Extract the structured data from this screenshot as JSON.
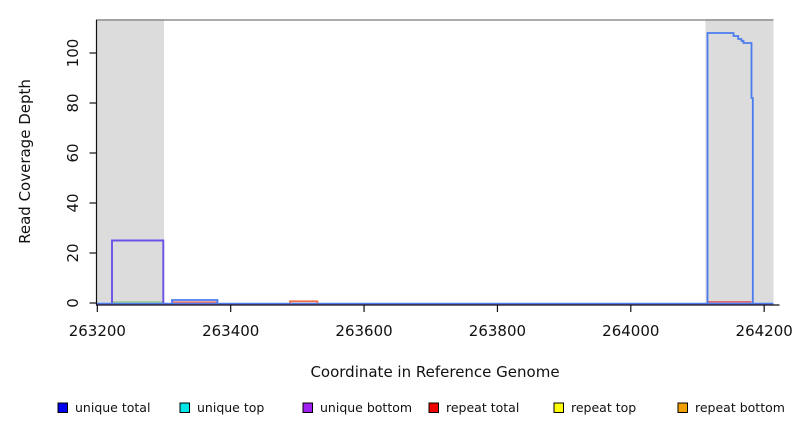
{
  "figure": {
    "xlabel": "Coordinate in Reference Genome",
    "ylabel": "Read Coverage Depth"
  },
  "chart_data": {
    "type": "line",
    "title": "",
    "xlabel": "Coordinate in Reference Genome",
    "ylabel": "Read Coverage Depth",
    "xlim": [
      263198,
      264214
    ],
    "ylim": [
      0,
      113.2
    ],
    "x_ticks": [
      263200,
      263400,
      263600,
      263800,
      264000,
      264200
    ],
    "y_ticks": [
      0,
      20,
      40,
      60,
      80,
      100
    ],
    "grid": false,
    "legend_position": "bottom",
    "top_border": {
      "value": 113.2,
      "color": "#8f8f8f"
    },
    "shaded_regions": [
      {
        "name": "repeat-region-left",
        "x0": 263198,
        "x1": 263300,
        "color": "#dcdcdc"
      },
      {
        "name": "repeat-region-right",
        "x0": 264112,
        "x1": 264214,
        "color": "#dcdcdc"
      }
    ],
    "series": [
      {
        "name": "unique-bottom-baseline",
        "color": "#8a70ea",
        "width": 1.3,
        "dy": 1.6,
        "points": [
          [
            263198,
            0
          ],
          [
            264214,
            0
          ]
        ]
      },
      {
        "name": "unique-total-baseline",
        "color": "#4a7cf0",
        "width": 1.3,
        "dy": 0.4,
        "points": [
          [
            263198,
            0
          ],
          [
            264214,
            0
          ]
        ]
      },
      {
        "name": "unique-top-green-segment",
        "color": "#90c890",
        "width": 1.4,
        "dy": 0,
        "points": [
          [
            263222,
            0.45
          ],
          [
            263299,
            0.45
          ]
        ]
      },
      {
        "name": "unique-bottom-block",
        "color": "#6b52e6",
        "width": 1.9,
        "dy": 0,
        "points": [
          [
            263222,
            0
          ],
          [
            263222,
            25
          ],
          [
            263299,
            25
          ],
          [
            263299,
            0
          ]
        ]
      },
      {
        "name": "repeat-total-mid-segment",
        "color": "#e06060",
        "width": 1.4,
        "dy": 0,
        "points": [
          [
            263312,
            0.35
          ],
          [
            263380,
            0.35
          ]
        ]
      },
      {
        "name": "unique-total-small-bump",
        "color": "#4a7cf0",
        "width": 1.8,
        "dy": 0,
        "points": [
          [
            263312,
            0
          ],
          [
            263312,
            1.2
          ],
          [
            263380,
            1.2
          ],
          [
            263380,
            0
          ]
        ]
      },
      {
        "name": "repeat-bottom-bump",
        "color": "#ef7048",
        "width": 1.8,
        "dy": 0,
        "points": [
          [
            263489,
            0
          ],
          [
            263489,
            0.7
          ],
          [
            263530,
            0.7
          ],
          [
            263530,
            0
          ]
        ]
      },
      {
        "name": "repeat-total-right-segment",
        "color": "#dd5566",
        "width": 1.4,
        "dy": 0,
        "points": [
          [
            264115,
            0.5
          ],
          [
            264181,
            0.5
          ]
        ]
      },
      {
        "name": "unique-total-right-peak",
        "color": "#4a7cf0",
        "width": 1.8,
        "dy": 0,
        "points": [
          [
            264115,
            0
          ],
          [
            264115,
            108
          ],
          [
            264154,
            108
          ],
          [
            264154,
            106.8
          ],
          [
            264161,
            106.8
          ],
          [
            264161,
            105.6
          ],
          [
            264166,
            105.6
          ],
          [
            264166,
            104.8
          ],
          [
            264169,
            104.8
          ],
          [
            264169,
            104
          ],
          [
            264181,
            104
          ],
          [
            264181,
            82
          ],
          [
            264183,
            82
          ],
          [
            264183,
            0
          ]
        ]
      }
    ]
  },
  "legend": {
    "items": [
      {
        "label": "unique total",
        "color": "#0000ee"
      },
      {
        "label": "unique top",
        "color": "#00e5e5"
      },
      {
        "label": "unique bottom",
        "color": "#a020f0"
      },
      {
        "label": "repeat total",
        "color": "#ee0000"
      },
      {
        "label": "repeat top",
        "color": "#ffff00"
      },
      {
        "label": "repeat bottom",
        "color": "#f0a000"
      }
    ]
  }
}
